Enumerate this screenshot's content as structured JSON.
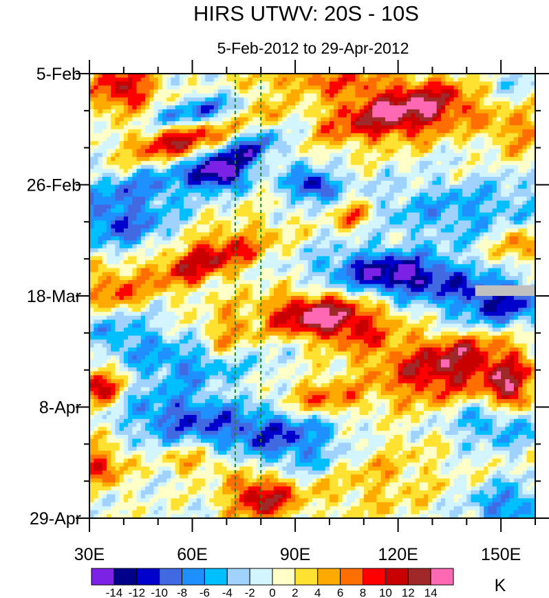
{
  "chart_data": {
    "type": "heatmap",
    "title": "HIRS UTWV: 20S - 10S",
    "subtitle": "5-Feb-2012 to 29-Apr-2012",
    "xlabel": "",
    "ylabel": "",
    "units_label": "K",
    "x_range_lon_deg_east": [
      30,
      160
    ],
    "y_range_days_since_5feb": [
      0,
      84
    ],
    "x_major_ticks": [
      30,
      60,
      90,
      120,
      150
    ],
    "x_tick_labels": [
      "30E",
      "60E",
      "90E",
      "120E",
      "150E"
    ],
    "x_minor_tick_step": 10,
    "y_major_ticks_days": [
      0,
      21,
      42,
      63,
      84
    ],
    "y_tick_labels": [
      "5-Feb",
      "26-Feb",
      "18-Mar",
      "8-Apr",
      "29-Apr"
    ],
    "y_minor_tick_step_days": 7,
    "y_direction": "time increases downward",
    "reference_lines_lon": [
      72.5,
      80
    ],
    "reference_line_color": "#1a8a1a",
    "missing_data": {
      "lon": [
        142.5,
        160
      ],
      "day": [
        40,
        42
      ],
      "color": "#c0c0c0"
    },
    "levels": [
      -14,
      -12,
      -10,
      -8,
      -6,
      -4,
      -2,
      0,
      2,
      4,
      6,
      8,
      10,
      12,
      14
    ],
    "level_labels": [
      "-14",
      "-12",
      "-10",
      "-8",
      "-6",
      "-4",
      "-2",
      "0",
      "2",
      "4",
      "6",
      "8",
      "10",
      "12",
      "14"
    ],
    "colors": [
      "#7b22e6",
      "#00008b",
      "#0000cd",
      "#4169e1",
      "#1e90ff",
      "#00bfff",
      "#a0d2ff",
      "#d2f5ff",
      "#ffffc8",
      "#ffe132",
      "#ffaa00",
      "#ff6e00",
      "#ff0000",
      "#c80000",
      "#a02828",
      "#ff69b4"
    ],
    "anomaly_features": [
      {
        "lon": 40,
        "day": 3,
        "amp": 11,
        "slon": 7,
        "sday": 3.5,
        "tilt": 0
      },
      {
        "lon": 55,
        "day": 13,
        "amp": 11,
        "slon": 9,
        "sday": 2.5,
        "tilt": -2
      },
      {
        "lon": 122,
        "day": 7,
        "amp": 15,
        "slon": 15,
        "sday": 4,
        "tilt": -1.5
      },
      {
        "lon": 98,
        "day": 1,
        "amp": 7,
        "slon": 12,
        "sday": 2,
        "tilt": 0
      },
      {
        "lon": 150,
        "day": 2,
        "amp": -4,
        "slon": 8,
        "sday": 3,
        "tilt": 0
      },
      {
        "lon": 60,
        "day": 7,
        "amp": -9,
        "slon": 8,
        "sday": 2,
        "tilt": -3
      },
      {
        "lon": 75,
        "day": 15,
        "amp": -11,
        "slon": 6,
        "sday": 3,
        "tilt": -2
      },
      {
        "lon": 68,
        "day": 19,
        "amp": -10,
        "slon": 5,
        "sday": 2,
        "tilt": 0
      },
      {
        "lon": 95,
        "day": 21,
        "amp": -13,
        "slon": 5,
        "sday": 2,
        "tilt": 0
      },
      {
        "lon": 45,
        "day": 22,
        "amp": -7,
        "slon": 14,
        "sday": 4,
        "tilt": -3
      },
      {
        "lon": 80,
        "day": 6,
        "amp": 5,
        "slon": 4,
        "sday": 3,
        "tilt": 0
      },
      {
        "lon": 140,
        "day": 26,
        "amp": -6,
        "slon": 20,
        "sday": 4,
        "tilt": 0
      },
      {
        "lon": 155,
        "day": 11,
        "amp": 6,
        "slon": 6,
        "sday": 3,
        "tilt": 0
      },
      {
        "lon": 107,
        "day": 27,
        "amp": 8,
        "slon": 4,
        "sday": 2,
        "tilt": 0
      },
      {
        "lon": 40,
        "day": 29,
        "amp": -8,
        "slon": 10,
        "sday": 3,
        "tilt": 0
      },
      {
        "lon": 64,
        "day": 35,
        "amp": 11,
        "slon": 10,
        "sday": 4,
        "tilt": -2
      },
      {
        "lon": 120,
        "day": 38,
        "amp": -15,
        "slon": 14,
        "sday": 3,
        "tilt": 1
      },
      {
        "lon": 150,
        "day": 43,
        "amp": -10,
        "slon": 10,
        "sday": 3,
        "tilt": 0
      },
      {
        "lon": 98,
        "day": 46,
        "amp": 15,
        "slon": 12,
        "sday": 3,
        "tilt": 0.5
      },
      {
        "lon": 36,
        "day": 41,
        "amp": 7,
        "slon": 6,
        "sday": 3,
        "tilt": 0
      },
      {
        "lon": 155,
        "day": 32,
        "amp": 7,
        "slon": 5,
        "sday": 3,
        "tilt": 0
      },
      {
        "lon": 70,
        "day": 50,
        "amp": 6,
        "slon": 5,
        "sday": 4,
        "tilt": 0
      },
      {
        "lon": 135,
        "day": 55,
        "amp": 13,
        "slon": 12,
        "sday": 5,
        "tilt": -1
      },
      {
        "lon": 153,
        "day": 60,
        "amp": 12,
        "slon": 5,
        "sday": 4,
        "tilt": 0
      },
      {
        "lon": 33,
        "day": 59,
        "amp": 11,
        "slon": 5,
        "sday": 3,
        "tilt": 0
      },
      {
        "lon": 98,
        "day": 62,
        "amp": 8,
        "slon": 9,
        "sday": 3,
        "tilt": 0
      },
      {
        "lon": 60,
        "day": 55,
        "amp": -7,
        "slon": 15,
        "sday": 3,
        "tilt": 0
      },
      {
        "lon": 55,
        "day": 64,
        "amp": -8,
        "slon": 12,
        "sday": 3,
        "tilt": 0
      },
      {
        "lon": 82,
        "day": 67,
        "amp": -9,
        "slon": 18,
        "sday": 3,
        "tilt": -2
      },
      {
        "lon": 92,
        "day": 72,
        "amp": -7,
        "slon": 10,
        "sday": 3,
        "tilt": 0
      },
      {
        "lon": 80,
        "day": 80,
        "amp": 12,
        "slon": 7,
        "sday": 3,
        "tilt": 0
      },
      {
        "lon": 33,
        "day": 74,
        "amp": 9,
        "slon": 5,
        "sday": 3,
        "tilt": 0
      },
      {
        "lon": 60,
        "day": 73,
        "amp": 6,
        "slon": 6,
        "sday": 2,
        "tilt": 0
      },
      {
        "lon": 150,
        "day": 66,
        "amp": -8,
        "slon": 10,
        "sday": 3,
        "tilt": 0
      },
      {
        "lon": 152,
        "day": 82,
        "amp": -8,
        "slon": 8,
        "sday": 3,
        "tilt": 0
      },
      {
        "lon": 112,
        "day": 76,
        "amp": 4,
        "slon": 15,
        "sday": 6,
        "tilt": 0
      },
      {
        "lon": 145,
        "day": 47,
        "amp": -4,
        "slon": 12,
        "sday": 3,
        "tilt": 0
      },
      {
        "lon": 40,
        "day": 49,
        "amp": -6,
        "slon": 8,
        "sday": 3,
        "tilt": 0
      },
      {
        "lon": 112,
        "day": 52,
        "amp": 4,
        "slon": 8,
        "sday": 3,
        "tilt": 0
      }
    ]
  }
}
